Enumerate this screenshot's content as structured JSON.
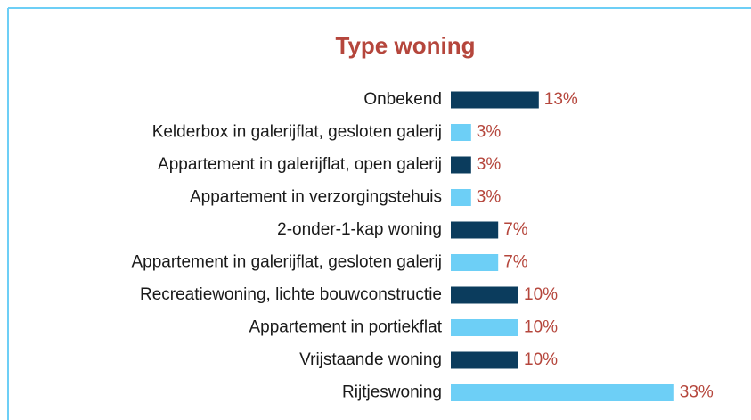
{
  "chart_data": {
    "type": "bar",
    "orientation": "horizontal",
    "title": "Type woning",
    "categories": [
      "Onbekend",
      "Kelderbox in galerijflat, gesloten galerij",
      "Appartement in galerijflat, open galerij",
      "Appartement in verzorgingstehuis",
      "2-onder-1-kap woning",
      "Appartement in galerijflat, gesloten galerij",
      "Recreatiewoning, lichte bouwconstructie",
      "Appartement in portiekflat",
      "Vrijstaande woning",
      "Rijtjeswoning"
    ],
    "values": [
      13,
      3,
      3,
      3,
      7,
      7,
      10,
      10,
      10,
      33
    ],
    "value_labels": [
      "13%",
      "3%",
      "3%",
      "3%",
      "7%",
      "7%",
      "10%",
      "10%",
      "10%",
      "33%"
    ],
    "colors": [
      "#0b3c5d",
      "#6dcff6",
      "#0b3c5d",
      "#6dcff6",
      "#0b3c5d",
      "#6dcff6",
      "#0b3c5d",
      "#6dcff6",
      "#0b3c5d",
      "#6dcff6"
    ]
  }
}
